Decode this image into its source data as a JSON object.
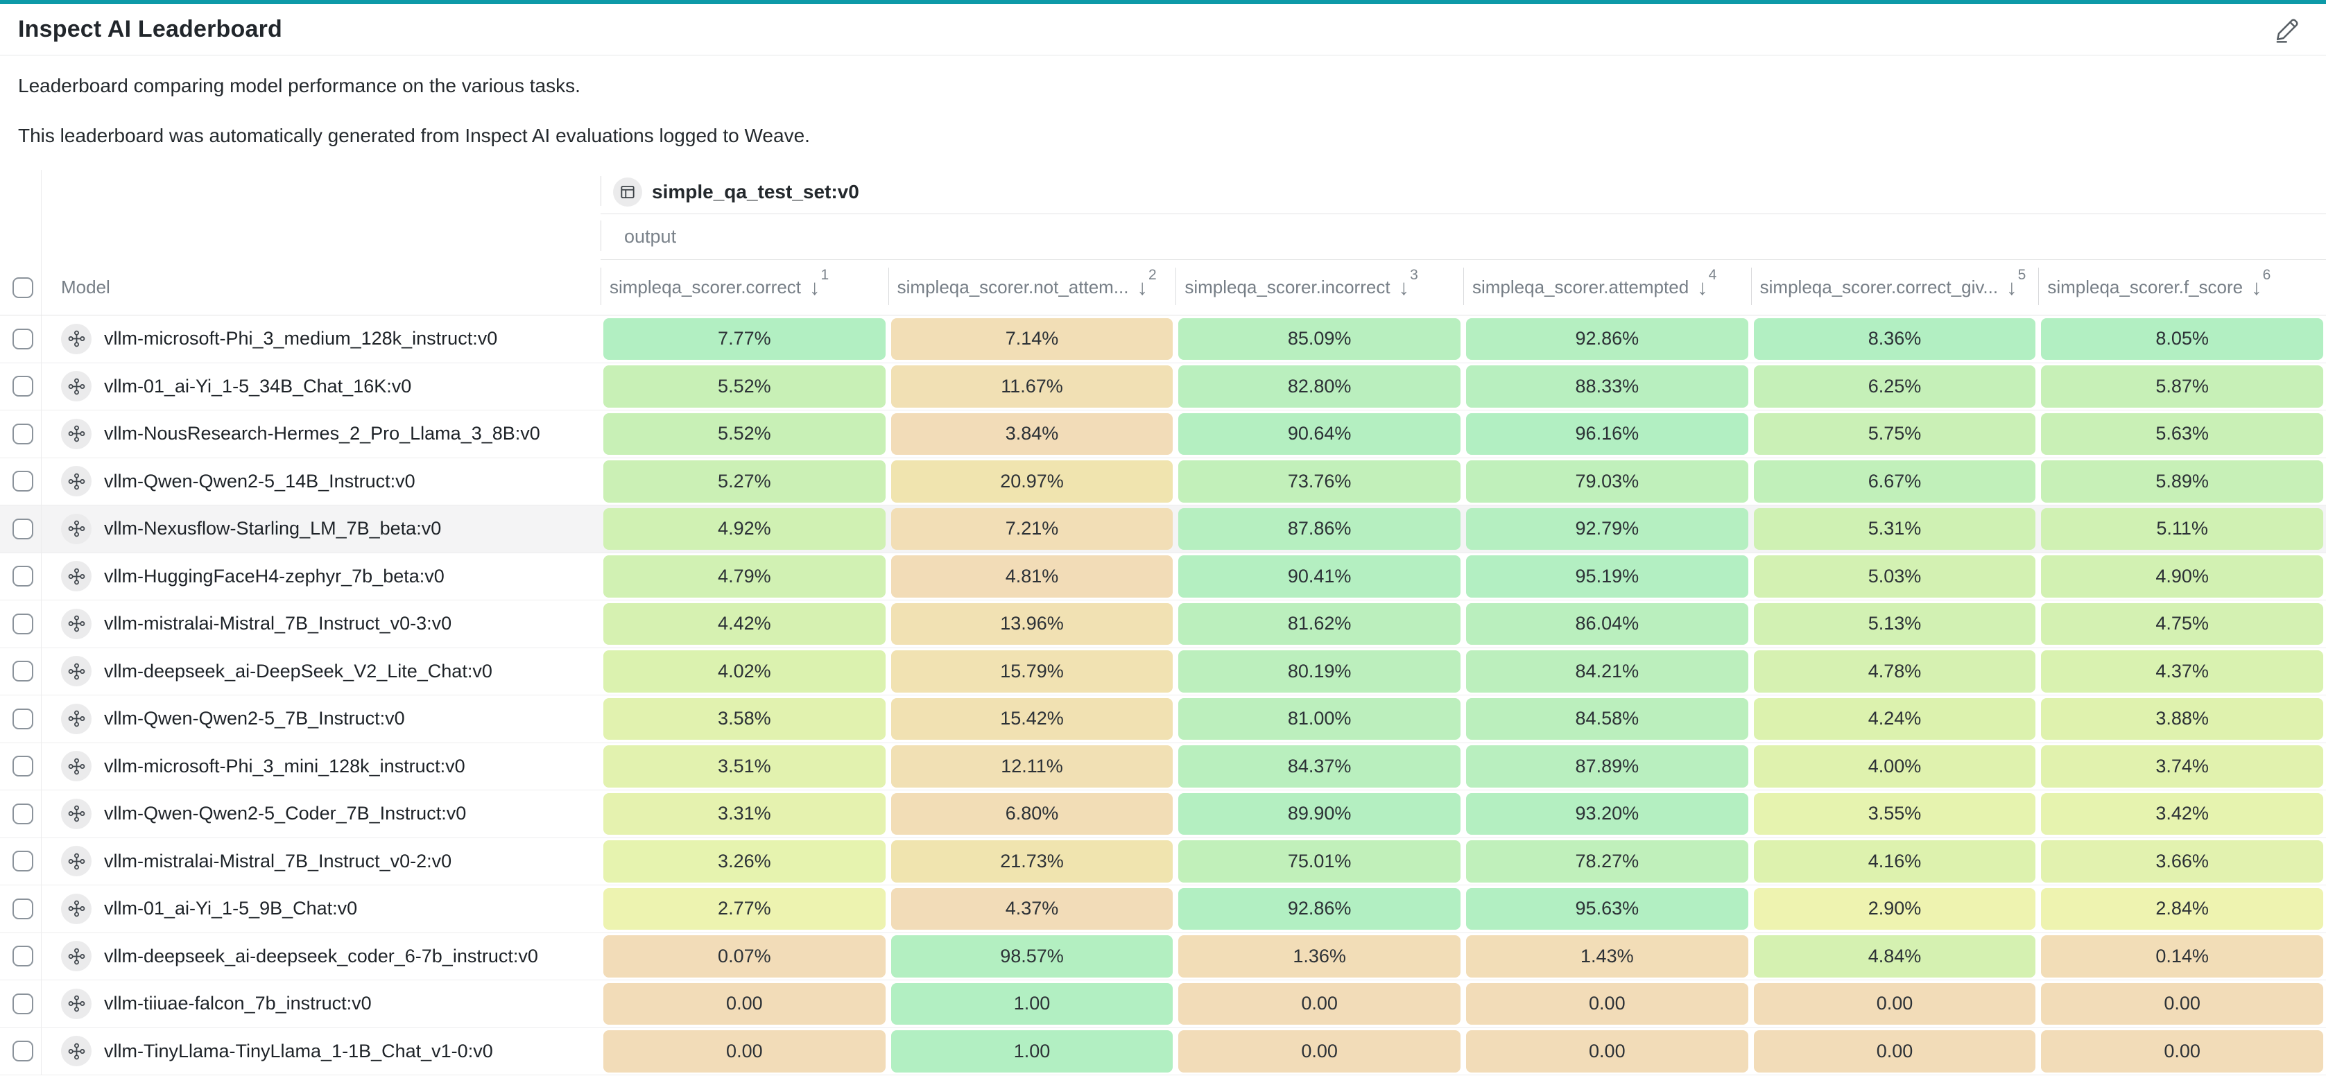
{
  "accent_color": "#0d9aa8",
  "header": {
    "title": "Inspect AI Leaderboard"
  },
  "description": {
    "line1": "Leaderboard comparing model performance on the various tasks.",
    "line2": "This leaderboard was automatically generated from Inspect AI evaluations logged to Weave."
  },
  "table": {
    "task_header": "simple_qa_test_set:v0",
    "subheader": "output",
    "model_column_label": "Model",
    "columns": [
      {
        "label": "simpleqa_scorer.correct",
        "sort_rank": "1",
        "sort_direction": "desc"
      },
      {
        "label": "simpleqa_scorer.not_attem...",
        "sort_rank": "2",
        "sort_direction": "desc"
      },
      {
        "label": "simpleqa_scorer.incorrect",
        "sort_rank": "3",
        "sort_direction": "desc"
      },
      {
        "label": "simpleqa_scorer.attempted",
        "sort_rank": "4",
        "sort_direction": "desc"
      },
      {
        "label": "simpleqa_scorer.correct_giv...",
        "sort_rank": "5",
        "sort_direction": "desc"
      },
      {
        "label": "simpleqa_scorer.f_score",
        "sort_rank": "6",
        "sort_direction": "desc"
      }
    ],
    "rows": [
      {
        "model": "vllm-microsoft-Phi_3_medium_128k_instruct:v0",
        "values": [
          "7.77%",
          "7.14%",
          "85.09%",
          "92.86%",
          "8.36%",
          "8.05%"
        ]
      },
      {
        "model": "vllm-01_ai-Yi_1-5_34B_Chat_16K:v0",
        "values": [
          "5.52%",
          "11.67%",
          "82.80%",
          "88.33%",
          "6.25%",
          "5.87%"
        ]
      },
      {
        "model": "vllm-NousResearch-Hermes_2_Pro_Llama_3_8B:v0",
        "values": [
          "5.52%",
          "3.84%",
          "90.64%",
          "96.16%",
          "5.75%",
          "5.63%"
        ]
      },
      {
        "model": "vllm-Qwen-Qwen2-5_14B_Instruct:v0",
        "values": [
          "5.27%",
          "20.97%",
          "73.76%",
          "79.03%",
          "6.67%",
          "5.89%"
        ]
      },
      {
        "model": "vllm-Nexusflow-Starling_LM_7B_beta:v0",
        "values": [
          "4.92%",
          "7.21%",
          "87.86%",
          "92.79%",
          "5.31%",
          "5.11%"
        ]
      },
      {
        "model": "vllm-HuggingFaceH4-zephyr_7b_beta:v0",
        "values": [
          "4.79%",
          "4.81%",
          "90.41%",
          "95.19%",
          "5.03%",
          "4.90%"
        ]
      },
      {
        "model": "vllm-mistralai-Mistral_7B_Instruct_v0-3:v0",
        "values": [
          "4.42%",
          "13.96%",
          "81.62%",
          "86.04%",
          "5.13%",
          "4.75%"
        ]
      },
      {
        "model": "vllm-deepseek_ai-DeepSeek_V2_Lite_Chat:v0",
        "values": [
          "4.02%",
          "15.79%",
          "80.19%",
          "84.21%",
          "4.78%",
          "4.37%"
        ]
      },
      {
        "model": "vllm-Qwen-Qwen2-5_7B_Instruct:v0",
        "values": [
          "3.58%",
          "15.42%",
          "81.00%",
          "84.58%",
          "4.24%",
          "3.88%"
        ]
      },
      {
        "model": "vllm-microsoft-Phi_3_mini_128k_instruct:v0",
        "values": [
          "3.51%",
          "12.11%",
          "84.37%",
          "87.89%",
          "4.00%",
          "3.74%"
        ]
      },
      {
        "model": "vllm-Qwen-Qwen2-5_Coder_7B_Instruct:v0",
        "values": [
          "3.31%",
          "6.80%",
          "89.90%",
          "93.20%",
          "3.55%",
          "3.42%"
        ]
      },
      {
        "model": "vllm-mistralai-Mistral_7B_Instruct_v0-2:v0",
        "values": [
          "3.26%",
          "21.73%",
          "75.01%",
          "78.27%",
          "4.16%",
          "3.66%"
        ]
      },
      {
        "model": "vllm-01_ai-Yi_1-5_9B_Chat:v0",
        "values": [
          "2.77%",
          "4.37%",
          "92.86%",
          "95.63%",
          "2.90%",
          "2.84%"
        ]
      },
      {
        "model": "vllm-deepseek_ai-deepseek_coder_6-7b_instruct:v0",
        "values": [
          "0.07%",
          "98.57%",
          "1.36%",
          "1.43%",
          "4.84%",
          "0.14%"
        ]
      },
      {
        "model": "vllm-tiiuae-falcon_7b_instruct:v0",
        "values": [
          "0.00",
          "1.00",
          "0.00",
          "0.00",
          "0.00",
          "0.00"
        ]
      },
      {
        "model": "vllm-TinyLlama-TinyLlama_1-1B_Chat_v1-0:v0",
        "values": [
          "0.00",
          "1.00",
          "0.00",
          "0.00",
          "0.00",
          "0.00"
        ]
      }
    ],
    "hovered_row_index": 4,
    "color_scale": {
      "stops": [
        [
          0.0,
          "#F2DCB8"
        ],
        [
          0.2,
          "#F0E5AE"
        ],
        [
          0.35,
          "#EEF3B0"
        ],
        [
          0.5,
          "#DDF2AE"
        ],
        [
          0.7,
          "#C9F0B6"
        ],
        [
          1.0,
          "#B2EFC2"
        ]
      ]
    }
  }
}
